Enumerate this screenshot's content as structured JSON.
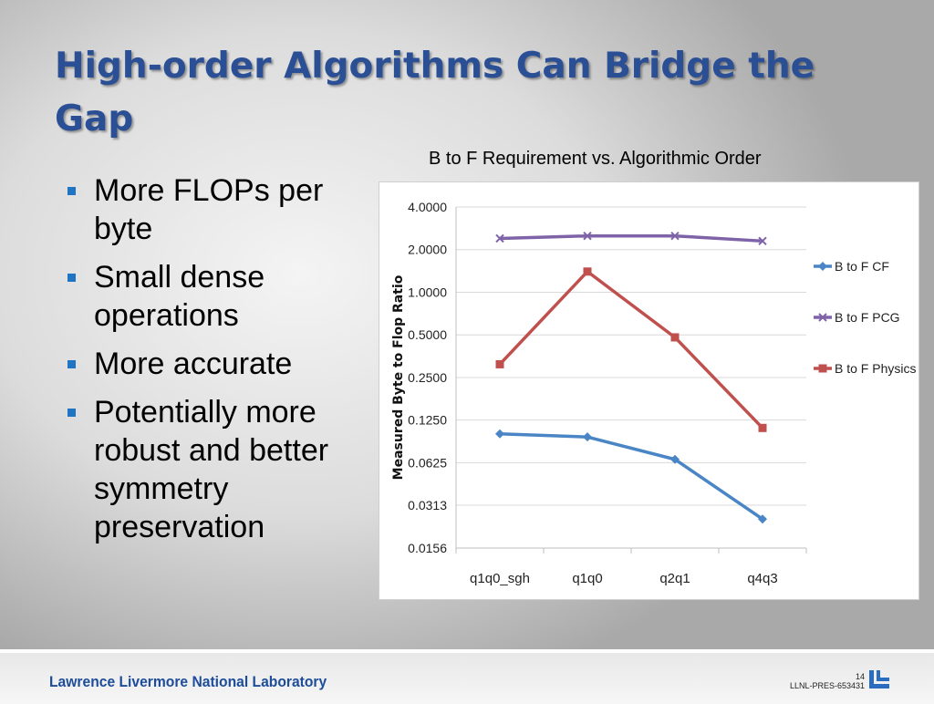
{
  "slide": {
    "title": "High-order Algorithms Can Bridge the Gap",
    "bullets": [
      "More FLOPs per byte",
      "Small dense operations",
      "More accurate",
      "Potentially more robust and better symmetry preservation"
    ]
  },
  "chart_caption": "B to F Requirement vs. Algorithmic Order",
  "footer": {
    "organization": "Lawrence Livermore National Laboratory",
    "page_number": "14",
    "doc_code": "LLNL-PRES-653431"
  },
  "colors": {
    "title": "#2a4f95",
    "bullet_marker": "#1f74c4",
    "footer_text": "#1d4c9a",
    "series_cf": "#4a86c5",
    "series_pcg": "#7f63a8",
    "series_physics": "#c0504d"
  },
  "icons": {
    "bullet": "square-bullet-icon",
    "logo": "llnl-logo-icon"
  },
  "chart_data": {
    "type": "line",
    "title": "",
    "xlabel": "",
    "ylabel": "Measured Byte to Flop Ratio",
    "y_scale": "log2",
    "ylim": [
      0.0156,
      4.0
    ],
    "y_ticks": [
      "4.0000",
      "2.0000",
      "1.0000",
      "0.5000",
      "0.2500",
      "0.1250",
      "0.0625",
      "0.0313",
      "0.0156"
    ],
    "categories": [
      "q1q0_sgh",
      "q1q0",
      "q2q1",
      "q4q3"
    ],
    "grid": "horizontal",
    "legend": "right",
    "series": [
      {
        "name": "B to F CF",
        "color": "#4a86c5",
        "marker": "diamond",
        "values": [
          0.1,
          0.095,
          0.066,
          0.025
        ]
      },
      {
        "name": "B to F PCG",
        "color": "#7f63a8",
        "marker": "x",
        "values": [
          2.4,
          2.5,
          2.5,
          2.3
        ]
      },
      {
        "name": "B to F Physics",
        "color": "#c0504d",
        "marker": "square",
        "values": [
          0.31,
          1.4,
          0.48,
          0.11
        ]
      }
    ]
  }
}
